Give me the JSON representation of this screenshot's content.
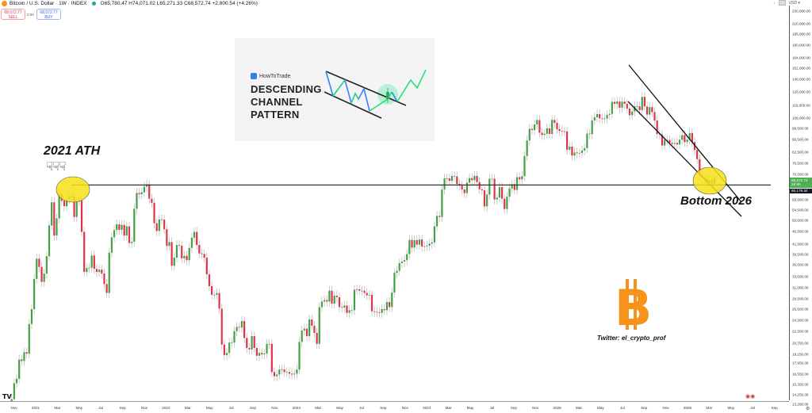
{
  "header": {
    "symbol": "Bitcoin / U.S. Dollar · 1W · INDEX",
    "ohlc": "O65,780.47 H74,071.02 L65,271.33 C68,572.74 +2,800.54 (+4.26%)",
    "sell_price": "68,572.77",
    "sell_label": "SELL",
    "spread": "0.00",
    "buy_price": "68,572.77",
    "buy_label": "BUY",
    "currency": "USD ▾"
  },
  "price_axis": {
    "ticks": [
      "230,000.00",
      "210,000.00",
      "195,000.00",
      "180,000.00",
      "164,000.00",
      "152,000.00",
      "140,000.00",
      "128,000.00",
      "116,000.00",
      "106,000.00",
      "98,500.00",
      "90,500.00",
      "82,500.00",
      "76,500.00",
      "70,500.00",
      "58,500.00",
      "54,500.00",
      "50,500.00",
      "46,500.00",
      "42,500.00",
      "39,500.00",
      "36,500.00",
      "33,500.00",
      "31,000.00",
      "28,500.00",
      "26,500.00",
      "24,500.00",
      "22,500.00",
      "20,750.00",
      "19,150.00",
      "17,950.00",
      "16,550.00",
      "15,350.00",
      "14,250.00",
      "13,290.00"
    ],
    "current_price": "68,572.74",
    "countdown": "2d 9h",
    "line_price": "65,179.34"
  },
  "time_axis": {
    "labels": [
      "Nov",
      "2021",
      "Mar",
      "May",
      "Jul",
      "Sep",
      "Nov",
      "2022",
      "Mar",
      "May",
      "Jul",
      "Sep",
      "Nov",
      "2023",
      "Mar",
      "May",
      "Jul",
      "Sep",
      "Nov",
      "2024",
      "Mar",
      "May",
      "Jul",
      "Sep",
      "Nov",
      "2025",
      "Mar",
      "May",
      "Jul",
      "Sep",
      "Nov",
      "2026",
      "Mar",
      "May",
      "Jul",
      "Sep"
    ]
  },
  "annotations": {
    "ath_label": "2021 ATH",
    "bottom_label": "Bottom 2026",
    "twitter": "Twitter: el_crypto_prof",
    "infographic_brand": "HowToTrade",
    "infographic_title": [
      "DESCENDING",
      "CHANNEL",
      "PATTERN"
    ]
  },
  "colors": {
    "up": "#43a047",
    "down": "#e0334a",
    "wick": "#b5b5b5",
    "highlight": "#f7e017",
    "bitcoin": "#f7931a"
  },
  "chart_data": {
    "type": "candlestick",
    "interval": "1W",
    "y_scale": "log",
    "ylim": [
      13290,
      230000
    ],
    "support_level": 65179.34,
    "weekly_close_thousands": [
      13.8,
      15.5,
      16.0,
      18.4,
      18.2,
      19.4,
      19.2,
      23.8,
      26.5,
      33.0,
      38.2,
      36.0,
      32.3,
      34.3,
      38.9,
      48.6,
      57.5,
      45.2,
      51.2,
      61.2,
      58.1,
      55.9,
      58.8,
      60.0,
      60.0,
      51.7,
      57.8,
      58.2,
      46.4,
      34.7,
      35.7,
      35.8,
      39.1,
      35.5,
      34.7,
      35.3,
      34.3,
      31.8,
      29.8,
      39.9,
      44.6,
      47.0,
      49.0,
      47.1,
      48.8,
      45.2,
      48.3,
      42.8,
      43.2,
      54.9,
      61.5,
      61.0,
      61.8,
      64.4,
      65.5,
      59.0,
      57.3,
      49.4,
      46.7,
      50.8,
      50.7,
      47.3,
      41.9,
      43.1,
      36.3,
      38.5,
      42.2,
      42.0,
      38.3,
      39.0,
      37.8,
      41.3,
      44.5,
      46.4,
      42.2,
      39.7,
      39.5,
      38.5,
      34.1,
      31.3,
      29.4,
      29.4,
      29.8,
      26.6,
      20.5,
      19.0,
      19.3,
      20.8,
      20.8,
      22.6,
      23.3,
      23.2,
      24.3,
      21.5,
      20.0,
      19.8,
      21.8,
      20.0,
      18.9,
      19.3,
      19.1,
      19.2,
      20.6,
      20.6,
      16.8,
      16.3,
      16.5,
      17.1,
      17.1,
      16.8,
      16.8,
      16.6,
      16.5,
      16.6,
      17.1,
      20.9,
      22.7,
      23.0,
      21.8,
      24.6,
      23.5,
      22.3,
      20.6,
      26.9,
      28.0,
      28.3,
      28.0,
      30.3,
      27.6,
      29.2,
      28.9,
      26.9,
      26.8,
      27.2,
      25.8,
      26.3,
      26.3,
      30.5,
      30.6,
      30.3,
      30.3,
      29.8,
      29.3,
      29.4,
      26.1,
      26.0,
      25.9,
      25.8,
      26.5,
      26.3,
      27.9,
      26.9,
      29.9,
      34.5,
      35.0,
      37.0,
      37.4,
      37.8,
      39.5,
      43.8,
      41.4,
      43.7,
      42.3,
      43.9,
      41.7,
      41.8,
      42.0,
      42.6,
      43.0,
      48.3,
      52.1,
      51.7,
      63.1,
      68.4,
      68.4,
      67.2,
      69.6,
      69.4,
      65.7,
      64.9,
      63.1,
      61.5,
      66.3,
      68.5,
      67.5,
      69.6,
      66.6,
      63.2,
      62.7,
      55.8,
      60.8,
      68.2,
      68.2,
      58.7,
      59.5,
      64.2,
      59.0,
      54.8,
      59.9,
      63.6,
      65.6,
      62.9,
      69.0,
      67.9,
      69.5,
      80.4,
      90.0,
      97.9,
      97.1,
      101.1,
      104.4,
      95.2,
      93.7,
      94.5,
      98.3,
      94.4,
      104.5,
      102.3,
      97.7,
      96.5,
      96.2,
      96.1,
      84.2,
      86.1,
      80.7,
      82.5,
      82.1,
      82.3,
      83.7,
      85.2,
      94.6,
      94.3,
      104.1,
      106.5,
      109.0,
      105.7,
      105.5,
      105.6,
      108.4,
      109.2,
      119.1,
      117.4,
      119.4,
      114.2,
      119.3,
      117.4,
      113.5,
      108.2,
      111.1,
      115.3,
      115.3,
      112.2,
      123.5,
      115.2,
      108.6,
      114.6,
      110.6,
      104.0,
      94.4,
      94.0,
      86.8,
      90.4,
      90.3,
      88.5,
      87.8,
      88.4,
      87.5,
      90.5,
      93.6,
      89.0,
      90.5,
      95.0,
      89.0,
      84.0,
      78.6,
      70.0,
      68.8,
      68.0,
      66.5,
      67.5,
      65.8,
      68.6
    ]
  }
}
